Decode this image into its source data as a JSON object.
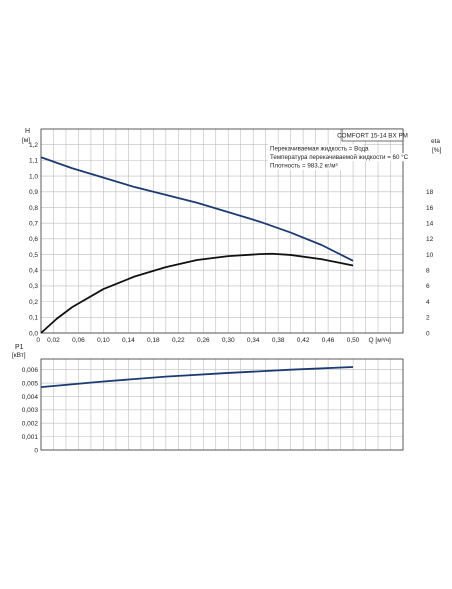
{
  "chart_data": [
    {
      "type": "line",
      "box_label": "COMFORT 15-14 BX PM",
      "notes": [
        "Перекачиваемая жидкость = Вода",
        "Температура перекачиваемой жидкости = 60 °C",
        "Плотность = 983.2 кг/м³"
      ],
      "x_axis": {
        "label": "Q [м³/ч]",
        "ticks": [
          "0",
          "0,02",
          "0,06",
          "0,10",
          "0,14",
          "0,18",
          "0,22",
          "0,26",
          "0,30",
          "0,34",
          "0,38",
          "0,42",
          "0,46",
          "0,50"
        ],
        "xlim": [
          0,
          0.58
        ]
      },
      "y_left": {
        "label_top": "H",
        "label_unit": "[м]",
        "ticks": [
          "0,0",
          "0,1",
          "0,2",
          "0,3",
          "0,4",
          "0,5",
          "0,6",
          "0,7",
          "0,8",
          "0,9",
          "1,0",
          "1,1",
          "1,2"
        ],
        "ylim": [
          0,
          1.3
        ]
      },
      "y_right": {
        "label_top": "eta",
        "label_unit": "[%]",
        "ticks": [
          "0",
          "2",
          "4",
          "6",
          "8",
          "10",
          "12",
          "14",
          "16",
          "18"
        ],
        "ylim": [
          0,
          26
        ]
      },
      "grid": true,
      "series": [
        {
          "axis": "left",
          "color": "#1d3b73",
          "x": [
            0,
            0.05,
            0.1,
            0.15,
            0.2,
            0.25,
            0.3,
            0.35,
            0.4,
            0.45,
            0.5
          ],
          "y": [
            1.12,
            1.05,
            0.99,
            0.93,
            0.88,
            0.83,
            0.77,
            0.71,
            0.64,
            0.56,
            0.46
          ]
        },
        {
          "axis": "right",
          "color": "#111111",
          "x": [
            0,
            0.025,
            0.05,
            0.1,
            0.15,
            0.2,
            0.25,
            0.3,
            0.35,
            0.37,
            0.4,
            0.45,
            0.5
          ],
          "y": [
            0,
            1.8,
            3.3,
            5.6,
            7.2,
            8.4,
            9.3,
            9.8,
            10.05,
            10.1,
            9.95,
            9.4,
            8.6
          ]
        }
      ]
    },
    {
      "type": "line",
      "y_axis": {
        "label_top": "P1",
        "label_unit": "[кВт]",
        "ticks": [
          "0",
          "0,001",
          "0,002",
          "0,003",
          "0,004",
          "0,005",
          "0,006"
        ],
        "ylim": [
          0,
          0.0068
        ]
      },
      "xlim": [
        0,
        0.58
      ],
      "grid": true,
      "series": [
        {
          "color": "#1d3b73",
          "x": [
            0,
            0.1,
            0.2,
            0.3,
            0.4,
            0.5
          ],
          "y": [
            0.0047,
            0.00512,
            0.00548,
            0.00576,
            0.006,
            0.0062
          ]
        }
      ]
    }
  ]
}
